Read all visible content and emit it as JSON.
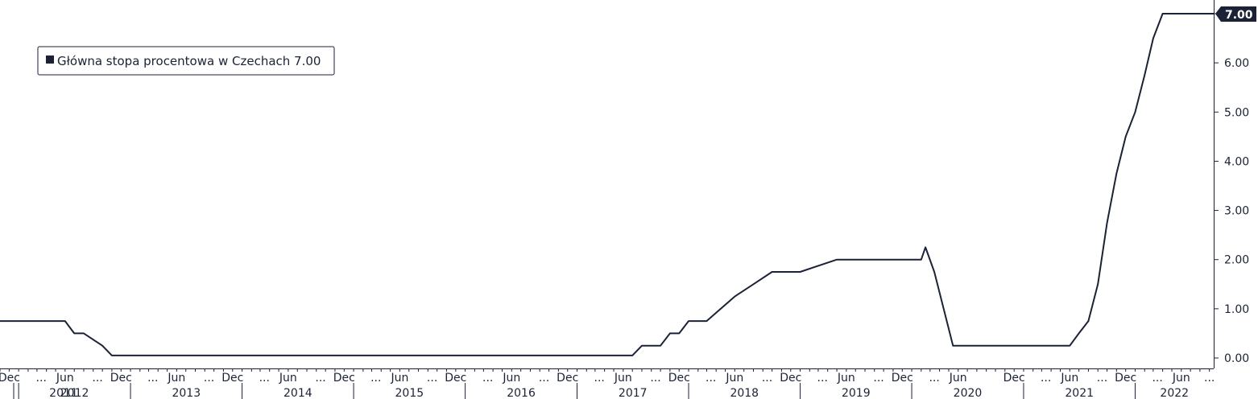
{
  "chart_data": {
    "type": "line",
    "series": [
      {
        "name": "Główna stopa procentowa w Czechach",
        "last_value_label": "7.00",
        "color": "#1b2235",
        "x": [
          "2011-11-01",
          "2012-06-01",
          "2012-07-01",
          "2012-08-01",
          "2012-10-01",
          "2012-11-01",
          "2017-07-01",
          "2017-08-01",
          "2017-10-01",
          "2017-11-01",
          "2017-12-01",
          "2018-01-01",
          "2018-03-01",
          "2018-06-01",
          "2018-08-01",
          "2018-10-01",
          "2018-12-01",
          "2019-01-01",
          "2019-05-01",
          "2020-02-01",
          "2020-02-15",
          "2020-03-15",
          "2020-05-15",
          "2021-06-01",
          "2021-07-01",
          "2021-08-01",
          "2021-09-01",
          "2021-10-01",
          "2021-11-01",
          "2021-12-01",
          "2022-01-01",
          "2022-02-01",
          "2022-03-01",
          "2022-04-01",
          "2022-05-01",
          "2022-06-01",
          "2022-07-01",
          "2022-09-15"
        ],
        "values": [
          0.75,
          0.75,
          0.5,
          0.5,
          0.25,
          0.05,
          0.05,
          0.25,
          0.25,
          0.5,
          0.5,
          0.75,
          0.75,
          1.25,
          1.5,
          1.75,
          1.75,
          1.75,
          2.0,
          2.0,
          2.25,
          1.75,
          0.25,
          0.25,
          0.5,
          0.75,
          1.5,
          2.75,
          3.75,
          4.5,
          5.0,
          5.75,
          6.5,
          7.0,
          7.0,
          7.0,
          7.0,
          7.0
        ]
      }
    ],
    "xlim": [
      "2011-11-01",
      "2022-09-15"
    ],
    "ylim": [
      -0.2,
      7.2
    ],
    "yticks": [
      0,
      1,
      2,
      3,
      4,
      5,
      6,
      7
    ],
    "ytick_labels": [
      "0.00",
      "1.00",
      "2.00",
      "3.00",
      "4.00",
      "5.00",
      "6.00",
      "7.00"
    ],
    "x_month_labels": [
      {
        "date": "2011-12-01",
        "label": "Dec"
      },
      {
        "date": "2012-03-15",
        "label": "..."
      },
      {
        "date": "2012-06-01",
        "label": "Jun"
      },
      {
        "date": "2012-09-15",
        "label": "..."
      },
      {
        "date": "2012-12-01",
        "label": "Dec"
      },
      {
        "date": "2013-03-15",
        "label": "..."
      },
      {
        "date": "2013-06-01",
        "label": "Jun"
      },
      {
        "date": "2013-09-15",
        "label": "..."
      },
      {
        "date": "2013-12-01",
        "label": "Dec"
      },
      {
        "date": "2014-03-15",
        "label": "..."
      },
      {
        "date": "2014-06-01",
        "label": "Jun"
      },
      {
        "date": "2014-09-15",
        "label": "..."
      },
      {
        "date": "2014-12-01",
        "label": "Dec"
      },
      {
        "date": "2015-03-15",
        "label": "..."
      },
      {
        "date": "2015-06-01",
        "label": "Jun"
      },
      {
        "date": "2015-09-15",
        "label": "..."
      },
      {
        "date": "2015-12-01",
        "label": "Dec"
      },
      {
        "date": "2016-03-15",
        "label": "..."
      },
      {
        "date": "2016-06-01",
        "label": "Jun"
      },
      {
        "date": "2016-09-15",
        "label": "..."
      },
      {
        "date": "2016-12-01",
        "label": "Dec"
      },
      {
        "date": "2017-03-15",
        "label": "..."
      },
      {
        "date": "2017-06-01",
        "label": "Jun"
      },
      {
        "date": "2017-09-15",
        "label": "..."
      },
      {
        "date": "2017-12-01",
        "label": "Dec"
      },
      {
        "date": "2018-03-15",
        "label": "..."
      },
      {
        "date": "2018-06-01",
        "label": "Jun"
      },
      {
        "date": "2018-09-15",
        "label": "..."
      },
      {
        "date": "2018-12-01",
        "label": "Dec"
      },
      {
        "date": "2019-03-15",
        "label": "..."
      },
      {
        "date": "2019-06-01",
        "label": "Jun"
      },
      {
        "date": "2019-09-15",
        "label": "..."
      },
      {
        "date": "2019-12-01",
        "label": "Dec"
      },
      {
        "date": "2020-03-15",
        "label": "..."
      },
      {
        "date": "2020-06-01",
        "label": "Jun"
      },
      {
        "date": "2020-12-01",
        "label": "Dec"
      },
      {
        "date": "2021-03-15",
        "label": "..."
      },
      {
        "date": "2021-06-01",
        "label": "Jun"
      },
      {
        "date": "2021-09-15",
        "label": "..."
      },
      {
        "date": "2021-12-01",
        "label": "Dec"
      },
      {
        "date": "2022-03-15",
        "label": "..."
      },
      {
        "date": "2022-06-01",
        "label": "Jun"
      },
      {
        "date": "2022-09-01",
        "label": "..."
      }
    ],
    "x_year_labels": [
      {
        "year": "2011"
      },
      {
        "year": "2012"
      },
      {
        "year": "2013"
      },
      {
        "year": "2014"
      },
      {
        "year": "2015"
      },
      {
        "year": "2016"
      },
      {
        "year": "2017"
      },
      {
        "year": "2018"
      },
      {
        "year": "2019"
      },
      {
        "year": "2020"
      },
      {
        "year": "2021"
      },
      {
        "year": "2022"
      }
    ],
    "legend": {
      "entries": [
        "Główna stopa procentowa w Czechach 7.00"
      ],
      "placement": "top-left"
    },
    "grid": false,
    "title": "",
    "xlabel": "",
    "ylabel": ""
  }
}
